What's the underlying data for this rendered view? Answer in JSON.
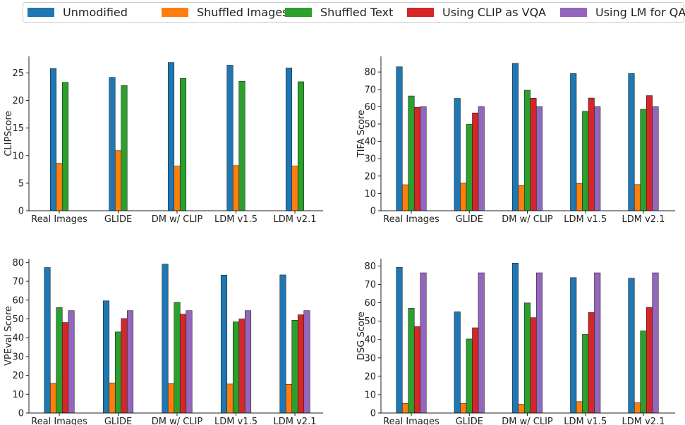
{
  "legend": {
    "items": [
      {
        "label": "Unmodified",
        "color": "#1f77b4"
      },
      {
        "label": "Shuffled Images",
        "color": "#ff7f0e"
      },
      {
        "label": "Shuffled Text",
        "color": "#2ca02c"
      },
      {
        "label": "Using CLIP as VQA",
        "color": "#d62728"
      },
      {
        "label": "Using LM for QA",
        "color": "#9467bd"
      }
    ]
  },
  "chart_data": [
    {
      "type": "bar",
      "ylabel": "CLIPScore",
      "ylim": [
        0,
        28
      ],
      "yticks": [
        0,
        5,
        10,
        15,
        20,
        25
      ],
      "categories": [
        "Real Images",
        "GLIDE",
        "DM w/ CLIP",
        "LDM v1.5",
        "LDM v2.1"
      ],
      "series": [
        {
          "name": "Unmodified",
          "values": [
            25.8,
            24.2,
            26.9,
            26.4,
            25.9
          ]
        },
        {
          "name": "Shuffled Images",
          "values": [
            8.6,
            10.9,
            8.1,
            8.2,
            8.1
          ]
        },
        {
          "name": "Shuffled Text",
          "values": [
            23.3,
            22.7,
            24.0,
            23.5,
            23.4
          ]
        }
      ]
    },
    {
      "type": "bar",
      "ylabel": "TIFA Score",
      "ylim": [
        0,
        89
      ],
      "yticks": [
        0,
        10,
        20,
        30,
        40,
        50,
        60,
        70,
        80
      ],
      "categories": [
        "Real Images",
        "GLIDE",
        "DM w/ CLIP",
        "LDM v1.5",
        "LDM v2.1"
      ],
      "series": [
        {
          "name": "Unmodified",
          "values": [
            83.0,
            64.8,
            85.0,
            79.1,
            79.1
          ]
        },
        {
          "name": "Shuffled Images",
          "values": [
            15.0,
            15.9,
            14.6,
            15.8,
            15.1
          ]
        },
        {
          "name": "Shuffled Text",
          "values": [
            66.2,
            49.8,
            69.5,
            57.3,
            58.5
          ]
        },
        {
          "name": "Using CLIP as VQA",
          "values": [
            59.6,
            56.4,
            64.9,
            65.0,
            66.4
          ]
        },
        {
          "name": "Using LM for QA",
          "values": [
            60.0,
            60.0,
            60.0,
            60.0,
            60.0
          ]
        }
      ]
    },
    {
      "type": "bar",
      "ylabel": "VPEval Score",
      "ylim": [
        0,
        82
      ],
      "yticks": [
        0,
        10,
        20,
        30,
        40,
        50,
        60,
        70,
        80
      ],
      "categories": [
        "Real Images",
        "GLIDE",
        "DM w/ CLIP",
        "LDM v1.5",
        "LDM v2.1"
      ],
      "series": [
        {
          "name": "Unmodified",
          "values": [
            77.3,
            59.6,
            79.1,
            73.3,
            73.4
          ]
        },
        {
          "name": "Shuffled Images",
          "values": [
            15.8,
            16.0,
            15.6,
            15.4,
            15.2
          ]
        },
        {
          "name": "Shuffled Text",
          "values": [
            56.0,
            43.1,
            58.8,
            48.4,
            49.3
          ]
        },
        {
          "name": "Using CLIP as VQA",
          "values": [
            48.1,
            50.2,
            52.5,
            50.0,
            52.2
          ]
        },
        {
          "name": "Using LM for QA",
          "values": [
            54.4,
            54.4,
            54.4,
            54.4,
            54.4
          ]
        }
      ]
    },
    {
      "type": "bar",
      "ylabel": "DSG Score",
      "ylim": [
        0,
        84
      ],
      "yticks": [
        0,
        10,
        20,
        30,
        40,
        50,
        60,
        70,
        80
      ],
      "categories": [
        "Real Images",
        "GLIDE",
        "DM w/ CLIP",
        "LDM v1.5",
        "LDM v2.1"
      ],
      "series": [
        {
          "name": "Unmodified",
          "values": [
            79.3,
            55.1,
            81.6,
            73.7,
            73.4
          ]
        },
        {
          "name": "Shuffled Images",
          "values": [
            5.3,
            5.3,
            4.8,
            6.2,
            5.6
          ]
        },
        {
          "name": "Shuffled Text",
          "values": [
            57.0,
            40.3,
            59.9,
            42.8,
            44.7
          ]
        },
        {
          "name": "Using CLIP as VQA",
          "values": [
            47.0,
            46.4,
            51.9,
            54.7,
            57.5
          ]
        },
        {
          "name": "Using LM for QA",
          "values": [
            76.3,
            76.3,
            76.3,
            76.3,
            76.3
          ]
        }
      ]
    }
  ]
}
